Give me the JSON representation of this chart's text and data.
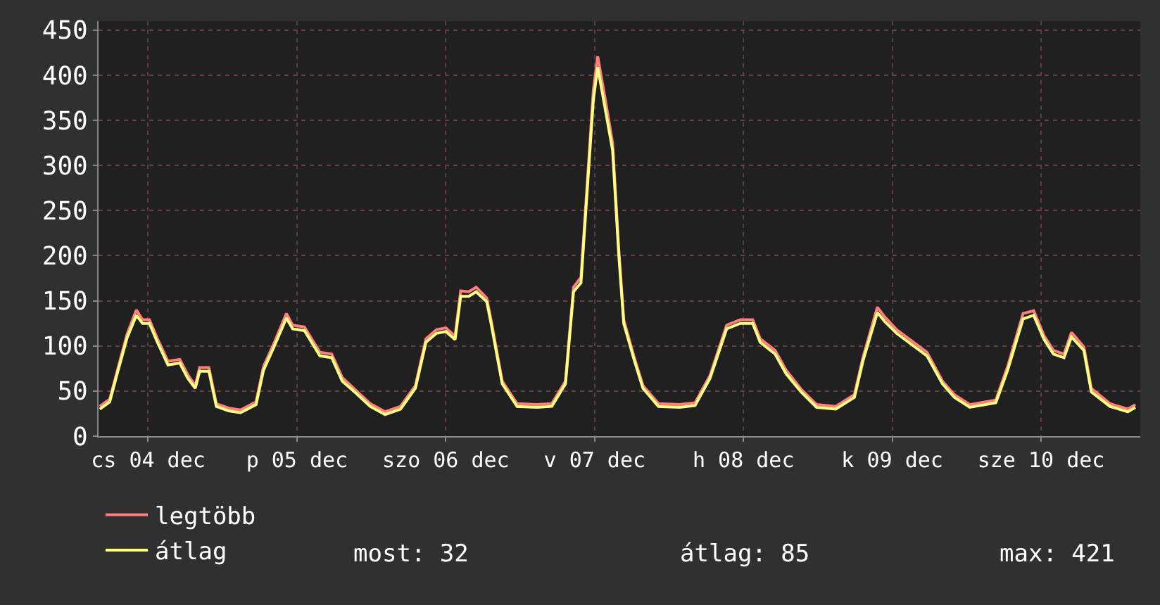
{
  "chart_data": {
    "type": "line",
    "x": [
      "--12-04T04:12",
      "--12-04T05:48",
      "--12-04T07:00",
      "--12-04T08:36",
      "--12-04T10:06",
      "--12-04T11:06",
      "--12-04T12:12",
      "--12-04T13:30",
      "--12-04T15:12",
      "--12-04T17:06",
      "--12-04T18:24",
      "--12-04T19:36",
      "--12-04T20:18",
      "--12-04T21:48",
      "--12-04T23:00",
      "--12-05T01:00",
      "--12-05T02:54",
      "--12-05T05:24",
      "--12-05T06:36",
      "--12-05T08:18",
      "--12-05T10:18",
      "--12-05T11:18",
      "--12-05T13:12",
      "--12-05T15:42",
      "--12-05T17:36",
      "--12-05T19:18",
      "--12-05T21:18",
      "--12-05T23:48",
      "--12-06T02:12",
      "--12-06T04:42",
      "--12-06T07:06",
      "--12-06T08:48",
      "--12-06T10:30",
      "--12-06T12:00",
      "--12-06T13:30",
      "--12-06T14:24",
      "--12-06T15:42",
      "--12-06T16:54",
      "--12-06T18:36",
      "--12-06T19:18",
      "--12-06T21:06",
      "--12-06T23:30",
      "--12-07T02:42",
      "--12-07T05:06",
      "--12-07T07:18",
      "--12-07T08:36",
      "--12-07T09:48",
      "--12-07T11:00",
      "--12-07T11:48",
      "--12-07T12:30",
      "--12-07T13:42",
      "--12-07T14:54",
      "--12-07T15:54",
      "--12-07T16:42",
      "--12-07T18:24",
      "--12-07T19:48",
      "--12-07T22:18",
      "--12-08T01:42",
      "--12-08T04:12",
      "--12-08T06:36",
      "--12-08T09:18",
      "--12-08T11:30",
      "--12-08T13:30",
      "--12-08T14:42",
      "--12-08T17:06",
      "--12-08T18:54",
      "--12-08T21:18",
      "--12-08T23:48",
      "--12-09T02:54",
      "--12-09T05:54",
      "--12-09T07:18",
      "--12-09T09:36",
      "--12-09T10:48",
      "--12-09T12:42",
      "--12-09T17:36",
      "--12-09T20:06",
      "--12-09T22:00",
      "--12-10T00:30",
      "--12-10T04:42",
      "--12-10T06:36",
      "--12-10T09:06",
      "--12-10T10:48",
      "--12-10T12:30",
      "--12-10T14:00",
      "--12-10T15:42",
      "--12-10T16:54",
      "--12-10T18:54",
      "--12-10T20:06",
      "--12-10T23:06",
      "--12-11T02:00",
      "--12-11T03:12"
    ],
    "series": [
      {
        "name": "legtöbb",
        "color": "#ff7f7f",
        "values": [
          33,
          41,
          72,
          113,
          140,
          129,
          129,
          108,
          83,
          85,
          68,
          56,
          76,
          76,
          36,
          31,
          29,
          38,
          77,
          103,
          136,
          123,
          121,
          93,
          91,
          65,
          52,
          36,
          27,
          33,
          56,
          108,
          118,
          120,
          111,
          161,
          160,
          165,
          153,
          129,
          61,
          36,
          35,
          36,
          61,
          165,
          176,
          300,
          384,
          421,
          374,
          325,
          207,
          129,
          87,
          56,
          36,
          35,
          37,
          67,
          123,
          129,
          129,
          108,
          95,
          73,
          52,
          35,
          33,
          46,
          88,
          143,
          132,
          118,
          93,
          61,
          46,
          35,
          40,
          77,
          136,
          139,
          111,
          95,
          91,
          115,
          99,
          53,
          36,
          30,
          35
        ]
      },
      {
        "name": "átlag",
        "color": "#ffff80",
        "values": [
          30,
          38,
          69,
          109,
          134,
          125,
          125,
          104,
          79,
          81,
          64,
          53,
          72,
          72,
          33,
          28,
          26,
          35,
          73,
          99,
          131,
          119,
          117,
          89,
          87,
          61,
          49,
          33,
          24,
          30,
          53,
          104,
          114,
          116,
          107,
          155,
          155,
          160,
          149,
          125,
          58,
          33,
          32,
          33,
          58,
          160,
          170,
          292,
          373,
          409,
          363,
          317,
          201,
          125,
          84,
          53,
          33,
          32,
          34,
          64,
          119,
          125,
          125,
          104,
          91,
          69,
          49,
          32,
          30,
          43,
          84,
          137,
          127,
          114,
          89,
          58,
          43,
          32,
          37,
          73,
          130,
          134,
          107,
          91,
          87,
          110,
          95,
          49,
          33,
          27,
          32
        ]
      }
    ],
    "xlim": [
      "--12-04T04:00",
      "--12-11T04:00"
    ],
    "xticks": [
      {
        "value": "--12-04T12:00",
        "label": "cs 04 dec"
      },
      {
        "value": "--12-05T12:00",
        "label": "p 05 dec"
      },
      {
        "value": "--12-06T12:00",
        "label": "szo 06 dec"
      },
      {
        "value": "--12-07T12:00",
        "label": "v 07 dec"
      },
      {
        "value": "--12-08T12:00",
        "label": "h 08 dec"
      },
      {
        "value": "--12-09T12:00",
        "label": "k 09 dec"
      },
      {
        "value": "--12-10T12:00",
        "label": "sze 10 dec"
      }
    ],
    "ylim": [
      0,
      460
    ],
    "yticks": [
      0,
      50,
      100,
      150,
      200,
      250,
      300,
      350,
      400,
      450
    ],
    "grid": true,
    "legend": "bottom left",
    "marker": "none",
    "line_style": "solid",
    "annotations": [
      "most: 32",
      "átlag: 85",
      "max: 421"
    ]
  }
}
